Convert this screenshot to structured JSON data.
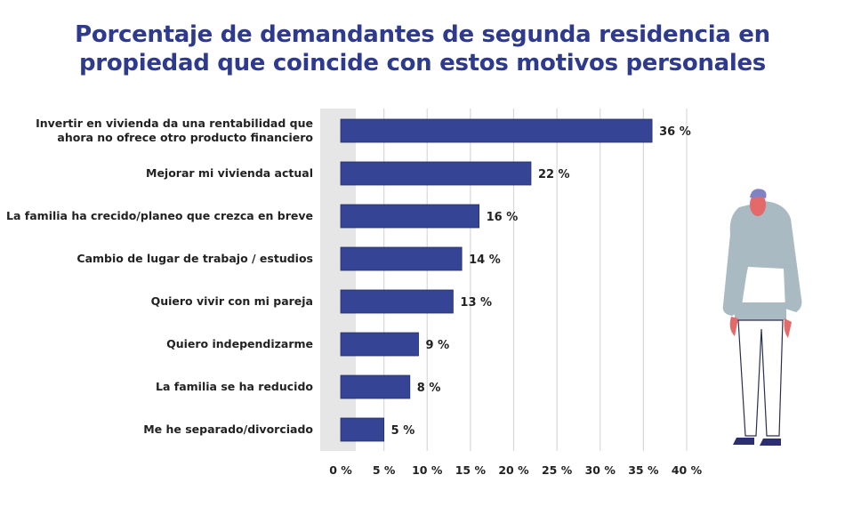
{
  "chart_data": {
    "type": "bar",
    "orientation": "horizontal",
    "title": [
      "Porcentaje de demandantes de segunda residencia en",
      "propiedad que coincide con estos motivos personales"
    ],
    "categories": [
      [
        "Invertir en vivienda da una rentabilidad que",
        "ahora no ofrece otro producto financiero"
      ],
      [
        "Mejorar mi vivienda actual"
      ],
      [
        "La familia ha crecido/planeo que crezca en breve"
      ],
      [
        "Cambio de lugar de trabajo / estudios"
      ],
      [
        "Quiero vivir con mi pareja"
      ],
      [
        "Quiero independizarme"
      ],
      [
        "La familia se ha reducido"
      ],
      [
        "Me he separado/divorciado"
      ]
    ],
    "values": [
      36,
      22,
      16,
      14,
      13,
      9,
      8,
      5
    ],
    "value_labels": [
      "36 %",
      "22 %",
      "16 %",
      "14 %",
      "13 %",
      "9 %",
      "8 %",
      "5 %"
    ],
    "xlim": [
      0,
      40
    ],
    "xticks": [
      0,
      5,
      10,
      15,
      20,
      25,
      30,
      35,
      40
    ],
    "xtick_labels": [
      "0 %",
      "5 %",
      "10 %",
      "15 %",
      "20 %",
      "25 %",
      "30 %",
      "35 %",
      "40 %"
    ],
    "grid": "vertical",
    "bar_color": "#364495",
    "title_color": "#2d3a8e"
  }
}
